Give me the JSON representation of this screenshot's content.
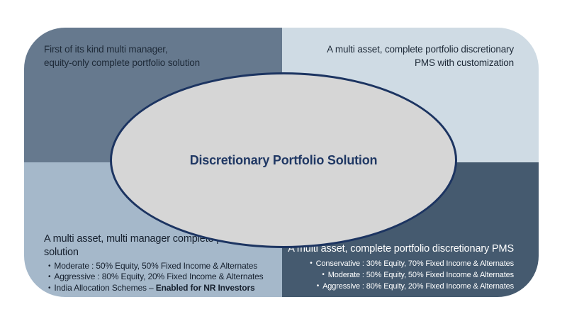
{
  "center": {
    "label": "Discretionary Portfolio Solution"
  },
  "quadrants": {
    "top_left": {
      "line1": "First of its kind multi manager,",
      "line2": "equity-only complete portfolio solution"
    },
    "top_right": {
      "line1": "A multi asset, complete portfolio discretionary",
      "line2": "PMS with customization"
    },
    "bottom_left": {
      "heading": "A multi asset, multi manager complete portfolio solution",
      "bullets": [
        "Moderate : 50% Equity, 50% Fixed Income & Alternates",
        "Aggressive : 80% Equity, 20% Fixed Income & Alternates"
      ],
      "india_bullet_prefix": "India Allocation Schemes – ",
      "india_bullet_bold": "Enabled for NR Investors"
    },
    "bottom_right": {
      "heading": "A multi asset, complete portfolio discretionary PMS",
      "bullets": [
        "Conservative : 30% Equity, 70% Fixed Income & Alternates",
        "Moderate : 50% Equity, 50% Fixed Income & Alternates",
        "Aggressive : 80% Equity, 20% Fixed Income & Alternates"
      ]
    }
  },
  "colors": {
    "background": "#ffffff",
    "quad_top_left": "#66798e",
    "quad_top_right": "#cfdbe4",
    "quad_bottom_left": "#a5b8ca",
    "quad_bottom_right": "#455a6f",
    "ellipse_fill": "#d6d6d6",
    "ellipse_border": "#1c3461",
    "center_title_text": "#203864",
    "dark_text": "#1e2a38",
    "light_text": "#ffffff"
  }
}
